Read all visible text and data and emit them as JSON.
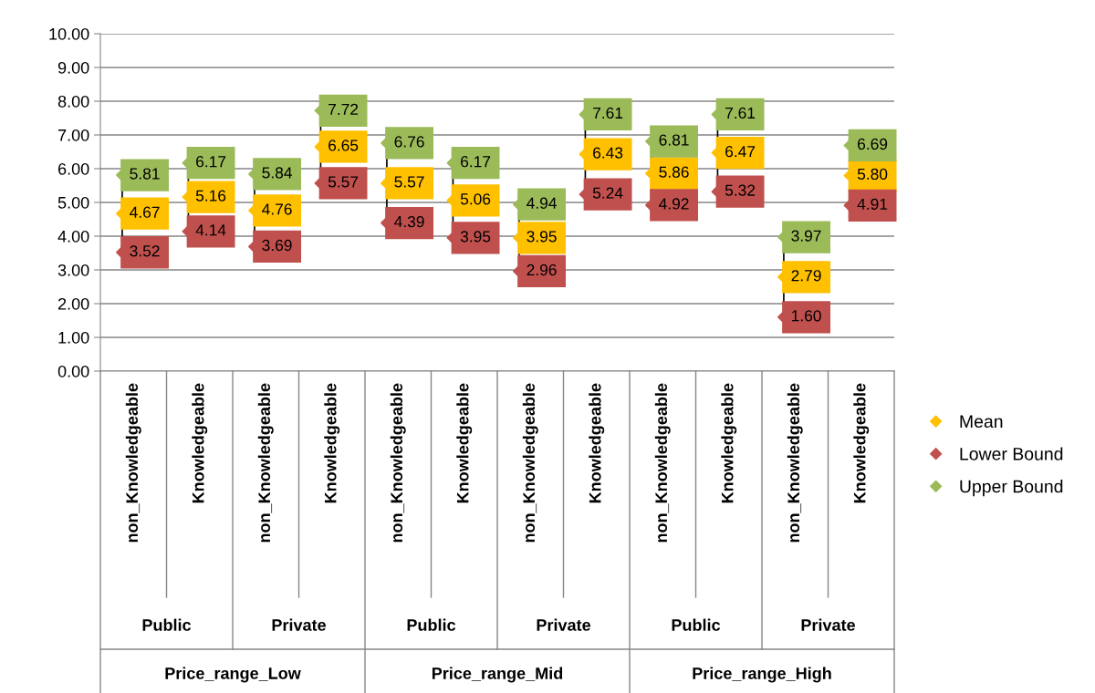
{
  "chart_data": {
    "type": "scatter",
    "categories": [
      "non_Knowledgeable",
      "Knowledgeable",
      "non_Knowledgeable",
      "Knowledgeable",
      "non_Knowledgeable",
      "Knowledgeable",
      "non_Knowledgeable",
      "Knowledgeable",
      "non_Knowledgeable",
      "Knowledgeable",
      "non_Knowledgeable",
      "Knowledgeable"
    ],
    "series": [
      {
        "name": "Mean",
        "color": "#ffc000",
        "values": [
          4.67,
          5.16,
          4.76,
          6.65,
          5.57,
          5.06,
          3.95,
          6.43,
          5.86,
          6.47,
          2.79,
          5.8
        ],
        "value_labels": [
          "4.67",
          "5.16",
          "4.76",
          "6.65",
          "5.57",
          "5.06",
          "3.95",
          "6.43",
          "5.86",
          "6.47",
          "2.79",
          "5.80"
        ]
      },
      {
        "name": "Lower Bound",
        "color": "#c0504d",
        "values": [
          3.52,
          4.14,
          3.69,
          5.57,
          4.39,
          3.95,
          2.96,
          5.24,
          4.92,
          5.32,
          1.6,
          4.91
        ],
        "value_labels": [
          "3.52",
          "4.14",
          "3.69",
          "5.57",
          "4.39",
          "3.95",
          "2.96",
          "5.24",
          "4.92",
          "5.32",
          "1.60",
          "4.91"
        ]
      },
      {
        "name": "Upper Bound",
        "color": "#9bbb59",
        "values": [
          5.81,
          6.17,
          5.84,
          7.72,
          6.76,
          6.17,
          4.94,
          7.61,
          6.81,
          7.61,
          3.97,
          6.69
        ],
        "value_labels": [
          "5.81",
          "6.17",
          "5.84",
          "7.72",
          "6.76",
          "6.17",
          "4.94",
          "7.61",
          "6.81",
          "7.61",
          "3.97",
          "6.69"
        ]
      }
    ],
    "annotations": [
      "Public",
      "Private",
      "Public",
      "Private",
      "Public",
      "Private",
      "Price_range_Low",
      "Price_range_Mid",
      "Price_range_High"
    ],
    "ylim": [
      0,
      10
    ],
    "yticks": [
      {
        "value": 0,
        "label": "0.00"
      },
      {
        "value": 1,
        "label": "1.00"
      },
      {
        "value": 2,
        "label": "2.00"
      },
      {
        "value": 3,
        "label": "3.00"
      },
      {
        "value": 4,
        "label": "4.00"
      },
      {
        "value": 5,
        "label": "5.00"
      },
      {
        "value": 6,
        "label": "6.00"
      },
      {
        "value": 7,
        "label": "7.00"
      },
      {
        "value": 8,
        "label": "8.00"
      },
      {
        "value": 9,
        "label": "9.00"
      },
      {
        "value": 10,
        "label": "10.00"
      }
    ],
    "grid": "y",
    "legend": "right",
    "marker": "diamond"
  }
}
